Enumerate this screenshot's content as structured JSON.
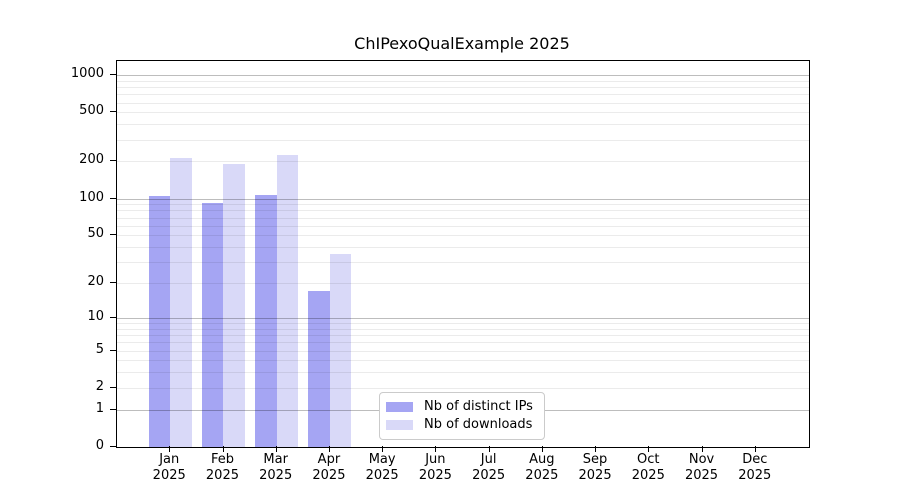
{
  "chart_data": {
    "type": "bar",
    "title": "ChIPexoQualExample 2025",
    "categories": [
      "Jan 2025",
      "Feb 2025",
      "Mar 2025",
      "Apr 2025",
      "May 2025",
      "Jun 2025",
      "Jul 2025",
      "Aug 2025",
      "Sep 2025",
      "Oct 2025",
      "Nov 2025",
      "Dec 2025"
    ],
    "series": [
      {
        "name": "Nb of distinct IPs",
        "color": "#a5a5f3",
        "values": [
          105,
          92,
          107,
          17,
          0,
          0,
          0,
          0,
          0,
          0,
          0,
          0
        ]
      },
      {
        "name": "Nb of downloads",
        "color": "#d9d9f8",
        "values": [
          215,
          190,
          225,
          35,
          0,
          0,
          0,
          0,
          0,
          0,
          0,
          0
        ]
      }
    ],
    "yscale": "log1p",
    "ylabel": "",
    "xlabel": "",
    "y_tick_values": [
      0,
      1,
      2,
      5,
      10,
      20,
      50,
      100,
      200,
      500,
      1000
    ],
    "y_tick_labels": [
      "0",
      "1",
      "2",
      "5",
      "10",
      "20",
      "50",
      "100",
      "200",
      "500",
      "1000"
    ],
    "ylim": [
      0,
      1350
    ],
    "grid": "horizontal log minor+major, no vertical",
    "legend_position": "lower-center",
    "colors": {
      "major_gridline": "#bcbcbc",
      "minor_gridline": "#ececec",
      "frame": "#000000",
      "background": "#ffffff"
    }
  }
}
